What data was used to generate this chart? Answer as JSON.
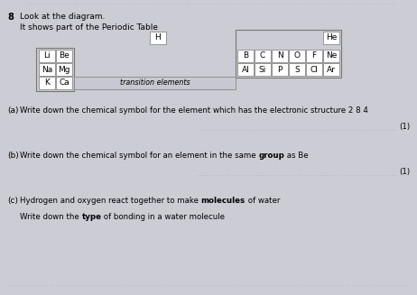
{
  "bg_color": "#ccccd4",
  "title_number": "8",
  "intro_line1": "Look at the diagram.",
  "intro_line2": "It shows part of the Periodic Table",
  "left_col1_syms": [
    "Li",
    "Na",
    "K"
  ],
  "left_col2_syms": [
    "Be",
    "Mg",
    "Ca"
  ],
  "right_row1_syms": [
    "B",
    "C",
    "N",
    "O",
    "F",
    "Ne"
  ],
  "right_row2_syms": [
    "Al",
    "Si",
    "P",
    "S",
    "Cl",
    "Ar"
  ],
  "H_sym": "H",
  "He_sym": "He",
  "transition_label": "transition elements",
  "qa": [
    {
      "label": "(a)",
      "pre": "Write down the chemical symbol for the element which has the electronic structure 2 8 4",
      "bold": "",
      "post": "",
      "mark": "(1)",
      "sub_pre": "",
      "sub_bold": "",
      "sub_post": ""
    },
    {
      "label": "(b)",
      "pre": "Write down the chemical symbol for an element in the same ",
      "bold": "group",
      "post": " as Be",
      "mark": "(1)",
      "sub_pre": "",
      "sub_bold": "",
      "sub_post": ""
    },
    {
      "label": "(c)",
      "pre": "Hydrogen and oxygen react together to make ",
      "bold": "molecules",
      "post": " of water",
      "mark": "",
      "sub_pre": "Write down the ",
      "sub_bold": "type",
      "sub_post": " of bonding in a water molecule"
    }
  ]
}
